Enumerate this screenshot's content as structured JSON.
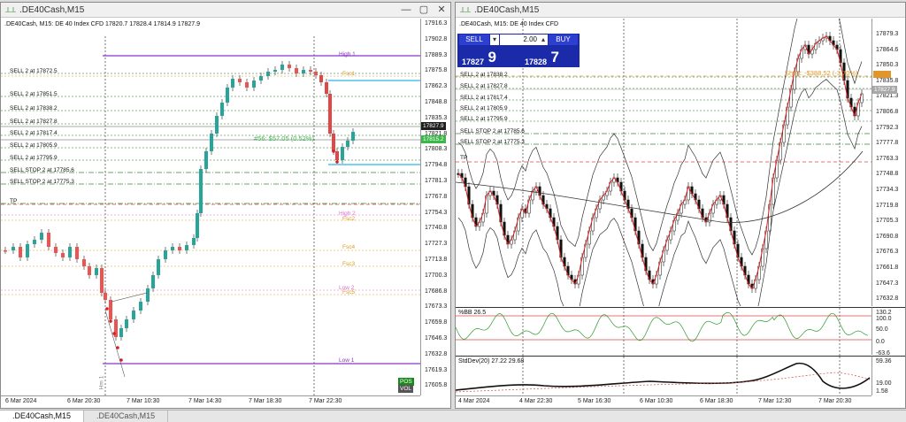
{
  "left": {
    "title": ".DE40Cash,M15",
    "info": ".DE40Cash, M15:  DE 40 Index CFD  17820.7 17828.4 17814.9 17827.9",
    "price_ticks": [
      "17916.3",
      "17902.8",
      "17889.3",
      "17875.8",
      "17862.3",
      "17848.8",
      "17835.3",
      "17821.8",
      "17808.3",
      "17794.8",
      "17781.3",
      "17767.8",
      "17754.3",
      "17740.8",
      "17727.3",
      "17713.8",
      "17700.3",
      "17686.8",
      "17673.3",
      "17659.8",
      "17646.3",
      "17632.8",
      "17619.3",
      "17605.8"
    ],
    "time_ticks": [
      "6 Mar 2024",
      "6 Mar 20:30",
      "7 Mar 10:30",
      "7 Mar 14:30",
      "7 Mar 18:30",
      "7 Mar 22:30"
    ],
    "orders": [
      "SELL 2 at 17872.5",
      "SELL 2 at 17851.5",
      "SELL 2 at 17838.2",
      "SELL 2 at 17827.8",
      "SELL 2 at 17817.4",
      "SELL 2 at 17805.9",
      "SELL 2 at 17795.9",
      "SELL STOP 2 at 17785.6",
      "SELL STOP 2 at 17775.3",
      "TP"
    ],
    "profit_label": "#56: $57.05 (0.52%)",
    "price_badge_1": "17827.9",
    "price_badge_2": "17815.2",
    "levels": [
      "High 1",
      "Fsc1",
      "High 2",
      "Fsc2",
      "Fsc4",
      "Fsc3",
      "Low 2",
      "Fsc5",
      "Low 1"
    ],
    "indicator": "Hm 1",
    "vol_label": "VOL",
    "pos_label": "POS"
  },
  "right": {
    "title": ".DE40Cash,M15",
    "info": ".DE40Cash, M15:  DE 40 Index CFD",
    "price_ticks": [
      "17879.3",
      "17864.6",
      "17850.3",
      "17835.8",
      "17821.3",
      "17806.8",
      "17792.3",
      "17777.8",
      "17763.3",
      "17748.8",
      "17734.3",
      "17719.8",
      "17705.3",
      "17690.8",
      "17676.3",
      "17661.8",
      "17647.3",
      "17632.8"
    ],
    "time_ticks": [
      "4 Mar 2024",
      "4 Mar 22:30",
      "5 Mar 16:30",
      "6 Mar 10:30",
      "6 Mar 18:30",
      "7 Mar 12:30",
      "7 Mar 20:30"
    ],
    "orders": [
      "SELL 2 at 17838.2",
      "SELL 2 at 17827.8",
      "SELL 2 at 17817.4",
      "SELL 2 at 17805.9",
      "SELL 2 at 17795.9",
      "SELL STOP 2 at 17785.6",
      "SELL STOP 2 at 17775.3",
      "TP"
    ],
    "short_label": "Short: -$388.52 (-3.70%)",
    "price_badge": "17827.9",
    "trade": {
      "sell": "SELL",
      "buy": "BUY",
      "qty": "2.00",
      "sell_small": "17827",
      "sell_big": "9",
      "buy_small": "17828",
      "buy_big": "7"
    },
    "bb_label": "%BB 26.5",
    "bb_ticks": [
      "130.2",
      "100.0",
      "50.0",
      "0.0",
      "-63.6"
    ],
    "std_label": "StdDev(20) 27.22 29.68",
    "std_ticks": [
      "59.36",
      "19.00",
      "1.58"
    ]
  },
  "tabs": [
    ".DE40Cash,M15",
    ".DE40Cash,M15"
  ]
}
